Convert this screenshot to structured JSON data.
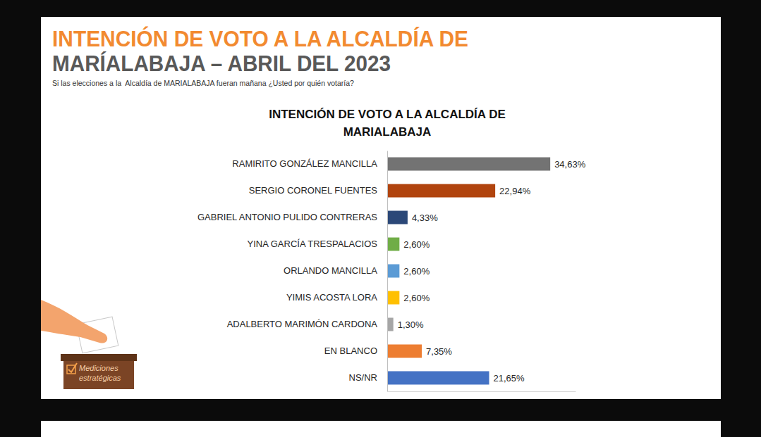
{
  "header": {
    "title_line1": "INTENCIÓN DE VOTO A LA ALCALDÍA DE",
    "title_line2": "MARÍALABAJA – ABRIL DEL 2023",
    "subtitle": "Si las elecciones a la  Alcaldía de MARIALABAJA fueran mañana ¿Usted por quién votaría?"
  },
  "logo": {
    "lines": [
      "Mediciones",
      "estratégicas"
    ]
  },
  "chart_data": {
    "type": "bar",
    "orientation": "horizontal",
    "title": "INTENCIÓN DE VOTO A LA ALCALDÍA DE MARIALABAJA",
    "categories": [
      "RAMIRITO GONZÁLEZ MANCILLA",
      "SERGIO CORONEL FUENTES",
      "GABRIEL ANTONIO PULIDO CONTRERAS",
      "YINA GARCÍA TRESPALACIOS",
      "ORLANDO MANCILLA",
      "YIMIS ACOSTA LORA",
      "ADALBERTO MARIMÓN CARDONA",
      "EN BLANCO",
      "NS/NR"
    ],
    "values": [
      34.63,
      22.94,
      4.33,
      2.6,
      2.6,
      2.6,
      1.3,
      7.35,
      21.65
    ],
    "value_labels": [
      "34,63%",
      "22,94%",
      "4,33%",
      "2,60%",
      "2,60%",
      "2,60%",
      "1,30%",
      "7,35%",
      "21,65%"
    ],
    "colors": [
      "#737373",
      "#b1440e",
      "#2b4878",
      "#70ad47",
      "#5b9bd5",
      "#ffc000",
      "#a6a6a6",
      "#ed7d31",
      "#4472c4"
    ],
    "xlim": [
      0,
      40
    ],
    "xticks": [],
    "data_labels": true,
    "tick_labels": false,
    "grid": false
  }
}
